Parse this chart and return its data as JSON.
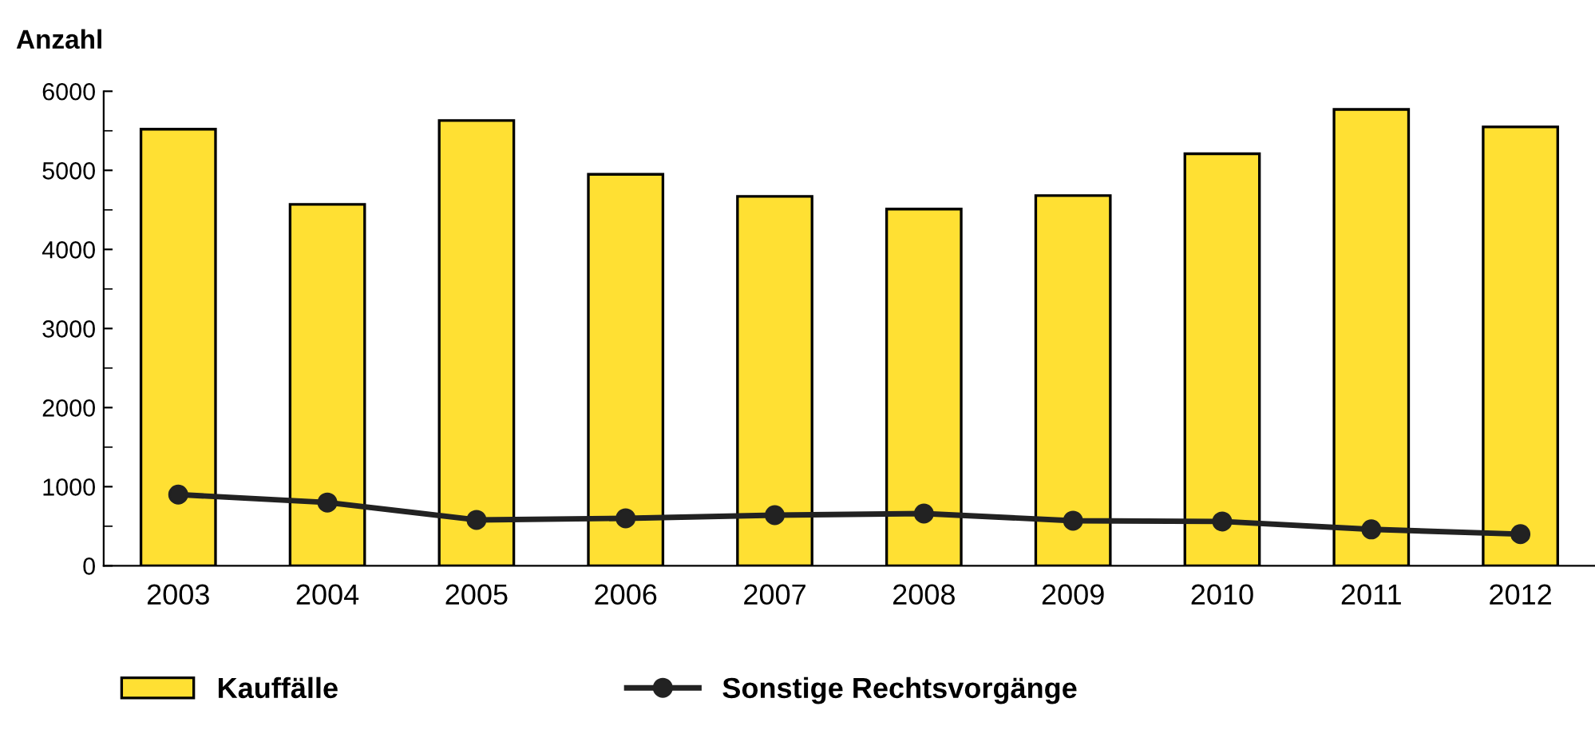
{
  "chart_data": {
    "type": "bar",
    "ylabel": "Anzahl",
    "categories": [
      "2003",
      "2004",
      "2005",
      "2006",
      "2007",
      "2008",
      "2009",
      "2010",
      "2011",
      "2012"
    ],
    "series": [
      {
        "name": "Kauffälle",
        "color": "#ffe033",
        "values": [
          5520,
          4570,
          5630,
          4950,
          4670,
          4510,
          4680,
          5210,
          5770,
          5550
        ]
      },
      {
        "name": "Sonstige Rechtsvorgänge",
        "type": "line",
        "color": "#222222",
        "marker": "circle",
        "values": [
          900,
          800,
          580,
          600,
          640,
          660,
          570,
          560,
          460,
          400
        ]
      }
    ],
    "ylim": [
      0,
      6000
    ],
    "yticks": [
      0,
      1000,
      2000,
      3000,
      4000,
      5000,
      6000
    ],
    "grid": false,
    "legend": "bottom"
  }
}
